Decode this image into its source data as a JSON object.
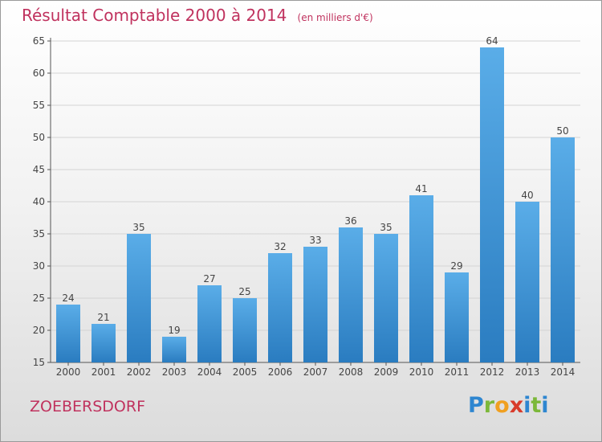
{
  "header": {
    "title": "Résultat Comptable 2000 à 2014",
    "subtitle": "(en milliers d'€)"
  },
  "footer": {
    "commune": "ZOEBERSDORF",
    "logo": "Proxiti"
  },
  "colors": {
    "title": "#c0325e",
    "bar_top": "#5aade8",
    "bar_bottom": "#2a7cc0"
  },
  "chart_data": {
    "type": "bar",
    "categories": [
      "2000",
      "2001",
      "2002",
      "2003",
      "2004",
      "2005",
      "2006",
      "2007",
      "2008",
      "2009",
      "2010",
      "2011",
      "2012",
      "2013",
      "2014"
    ],
    "values": [
      24,
      21,
      35,
      19,
      27,
      25,
      32,
      33,
      36,
      35,
      41,
      29,
      64,
      40,
      50
    ],
    "ylim": [
      15,
      65
    ],
    "yticks": [
      15,
      20,
      25,
      30,
      35,
      40,
      45,
      50,
      55,
      60,
      65
    ],
    "grid": true,
    "data_labels": true
  }
}
